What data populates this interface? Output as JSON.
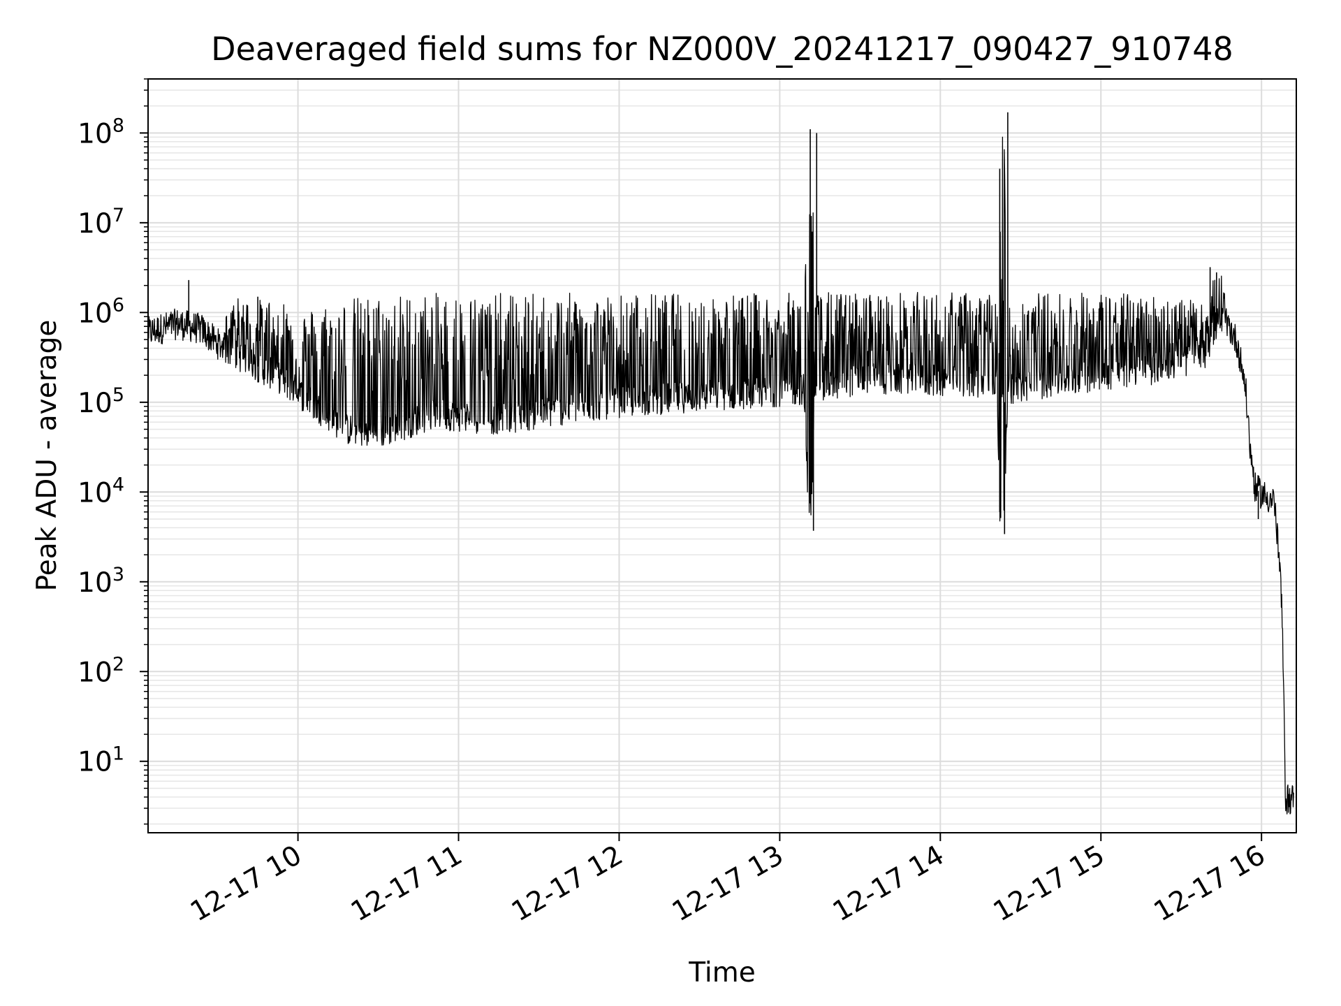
{
  "chart_data": {
    "type": "line",
    "title": "Deaveraged field sums for NZ000V_20241217_090427_910748",
    "xlabel": "Time",
    "ylabel": "Peak ADU - average",
    "yscale": "log",
    "grid": true,
    "xlim": [
      "12-17 09:04",
      "12-17 16:13"
    ],
    "ylim": [
      1.6,
      400000000
    ],
    "x_ticks": [
      "12-17 10",
      "12-17 11",
      "12-17 12",
      "12-17 13",
      "12-17 14",
      "12-17 15",
      "12-17 16"
    ],
    "x_tick_hours": [
      10,
      11,
      12,
      13,
      14,
      15,
      16
    ],
    "y_ticks": [
      {
        "base": "10",
        "exp": "1",
        "value": 10
      },
      {
        "base": "10",
        "exp": "2",
        "value": 100
      },
      {
        "base": "10",
        "exp": "3",
        "value": 1000
      },
      {
        "base": "10",
        "exp": "4",
        "value": 10000
      },
      {
        "base": "10",
        "exp": "5",
        "value": 100000
      },
      {
        "base": "10",
        "exp": "6",
        "value": 1000000
      },
      {
        "base": "10",
        "exp": "7",
        "value": 10000000
      },
      {
        "base": "10",
        "exp": "8",
        "value": 100000000
      }
    ],
    "series": [
      {
        "color": "#000000",
        "x_hours": [
          9.07,
          9.25,
          9.4,
          9.5,
          9.6,
          9.75,
          9.9,
          10.0,
          10.15,
          10.3,
          10.5,
          10.7,
          10.85,
          11.0,
          11.2,
          11.4,
          11.6,
          11.8,
          12.0,
          12.3,
          12.6,
          12.9,
          13.15,
          13.18,
          13.2,
          13.22,
          13.24,
          13.26,
          13.5,
          13.8,
          14.1,
          14.35,
          14.37,
          14.4,
          14.42,
          14.45,
          14.7,
          15.0,
          15.3,
          15.5,
          15.65,
          15.72,
          15.75,
          15.8,
          15.85,
          15.9,
          15.93,
          15.96,
          16.02,
          16.08,
          16.12,
          16.13,
          16.15,
          16.2
        ],
        "baseline": [
          600000,
          750000,
          650000,
          450000,
          350000,
          250000,
          180000,
          130000,
          80000,
          50000,
          45000,
          60000,
          75000,
          70000,
          65000,
          70000,
          80000,
          90000,
          100000,
          110000,
          120000,
          130000,
          140000,
          7000,
          8000,
          150000,
          150000,
          150000,
          180000,
          180000,
          170000,
          170000,
          6000,
          7000,
          150000,
          140000,
          170000,
          200000,
          230000,
          280000,
          330000,
          750000,
          800000,
          700000,
          450000,
          150000,
          30000,
          11000,
          9000,
          8000,
          1000,
          300,
          3.8,
          3.8
        ],
        "upper": [
          700000,
          850000,
          750000,
          600000,
          1500000,
          1400000,
          1500000,
          1000000,
          1300000,
          1500000,
          1600000,
          1650000,
          1650000,
          1650000,
          1650000,
          1650000,
          1650000,
          1650000,
          1650000,
          1650000,
          1650000,
          1650000,
          1650000,
          110000000,
          100000000,
          1700000,
          1700000,
          1700000,
          1700000,
          1700000,
          1700000,
          1700000,
          40000000,
          170000000,
          1700000,
          1700000,
          1700000,
          1700000,
          1600000,
          1500000,
          1200000,
          3200000,
          2800000,
          800000,
          500000,
          150000,
          30000,
          11000,
          9000,
          8000,
          1000,
          300,
          3.8,
          3.8
        ],
        "spikes": [
          {
            "x_hour": 9.32,
            "value": 2300000
          },
          {
            "x_hour": 9.75,
            "value": 1500000
          },
          {
            "x_hour": 13.19,
            "value": 110000000
          },
          {
            "x_hour": 13.23,
            "value": 100000000
          },
          {
            "x_hour": 14.37,
            "value": 40000000
          },
          {
            "x_hour": 14.42,
            "value": 170000000
          },
          {
            "x_hour": 15.68,
            "value": 3200000
          },
          {
            "x_hour": 15.72,
            "value": 2800000
          }
        ],
        "dips": [
          {
            "x_hour": 13.21,
            "value": 3700
          },
          {
            "x_hour": 14.4,
            "value": 3400
          },
          {
            "x_hour": 15.98,
            "value": 5000
          }
        ]
      }
    ]
  }
}
